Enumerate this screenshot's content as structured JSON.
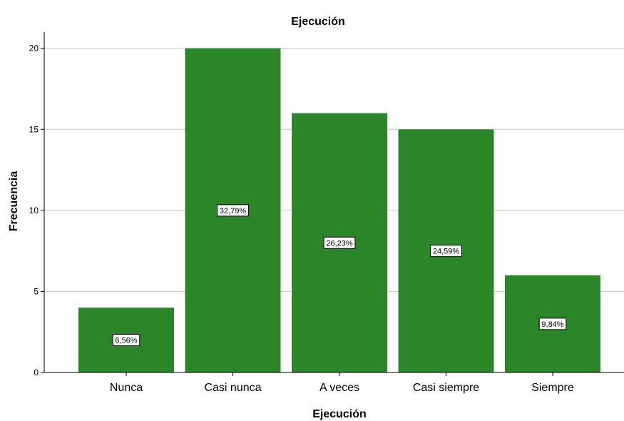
{
  "chart_data": {
    "type": "bar",
    "title": "Ejecución",
    "xlabel": "Ejecución",
    "ylabel": "Frecuencia",
    "categories": [
      "Nunca",
      "Casi nunca",
      "A veces",
      "Casi siempre",
      "Siempre"
    ],
    "values": [
      4,
      20,
      16,
      15,
      6
    ],
    "data_labels": [
      "6,56%",
      "32,79%",
      "26,23%",
      "24,59%",
      "9,84%"
    ],
    "yticks": [
      0,
      5,
      10,
      15,
      20
    ],
    "ylim": [
      0,
      21
    ],
    "grid": true,
    "bar_color": "#2b8629"
  }
}
